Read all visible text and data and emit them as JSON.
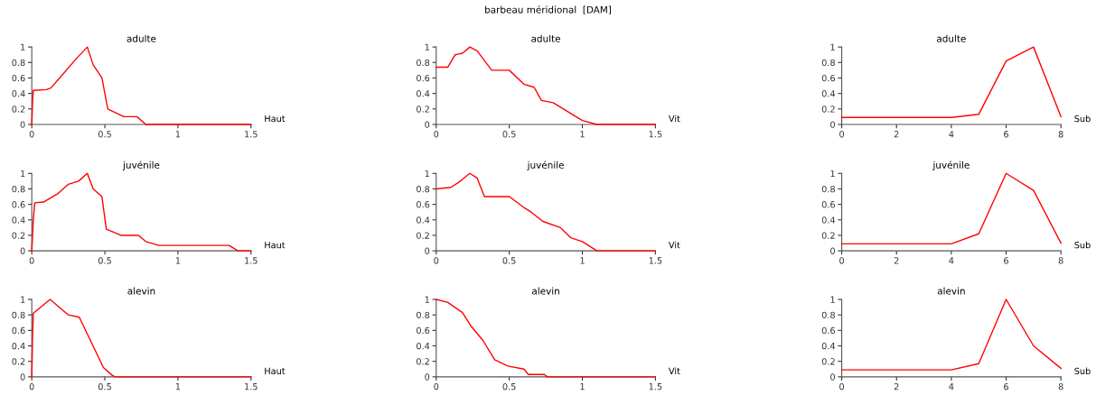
{
  "chart_data": [
    {
      "type": "line",
      "title": "adulte",
      "xlabel": "Haut",
      "annotations": [
        "barbeau méridional  [DAM]"
      ],
      "xlim": [
        0,
        1.5
      ],
      "xticks": [
        0,
        0.5,
        1,
        1.5
      ],
      "ylim": [
        0,
        1
      ],
      "yticks": [
        0,
        0.2,
        0.4,
        0.6,
        0.8,
        1
      ],
      "grid": false,
      "legend": false,
      "series": [
        {
          "color": "#ff0000",
          "x": [
            0,
            0.005,
            0.01,
            0.1,
            0.13,
            0.2,
            0.3,
            0.38,
            0.42,
            0.48,
            0.52,
            0.63,
            0.72,
            0.78,
            1.5
          ],
          "values": [
            0,
            0.27,
            0.44,
            0.45,
            0.47,
            0.62,
            0.84,
            1.0,
            0.77,
            0.6,
            0.2,
            0.1,
            0.1,
            0,
            0
          ]
        }
      ]
    },
    {
      "type": "line",
      "title": "adulte",
      "xlabel": "Vit",
      "xlim": [
        0,
        1.5
      ],
      "xticks": [
        0,
        0.5,
        1,
        1.5
      ],
      "ylim": [
        0,
        1
      ],
      "yticks": [
        0,
        0.2,
        0.4,
        0.6,
        0.8,
        1
      ],
      "grid": false,
      "legend": false,
      "series": [
        {
          "color": "#ff0000",
          "x": [
            0,
            0.08,
            0.13,
            0.18,
            0.23,
            0.28,
            0.38,
            0.5,
            0.6,
            0.67,
            0.72,
            0.8,
            1.0,
            1.1,
            1.5
          ],
          "values": [
            0.74,
            0.74,
            0.9,
            0.92,
            1.0,
            0.95,
            0.7,
            0.7,
            0.52,
            0.48,
            0.31,
            0.28,
            0.05,
            0,
            0
          ]
        }
      ]
    },
    {
      "type": "line",
      "title": "adulte",
      "xlabel": "Sub",
      "xlim": [
        0,
        8
      ],
      "xticks": [
        0,
        2,
        4,
        6,
        8
      ],
      "ylim": [
        0,
        1
      ],
      "yticks": [
        0,
        0.2,
        0.4,
        0.6,
        0.8,
        1
      ],
      "grid": false,
      "legend": false,
      "series": [
        {
          "color": "#ff0000",
          "x": [
            0,
            4,
            5,
            6,
            7,
            8
          ],
          "values": [
            0.09,
            0.09,
            0.13,
            0.82,
            1.0,
            0.1
          ]
        }
      ]
    },
    {
      "type": "line",
      "title": "juvénile",
      "xlabel": "Haut",
      "xlim": [
        0,
        1.5
      ],
      "xticks": [
        0,
        0.5,
        1,
        1.5
      ],
      "ylim": [
        0,
        1
      ],
      "yticks": [
        0,
        0.2,
        0.4,
        0.6,
        0.8,
        1
      ],
      "grid": false,
      "legend": false,
      "series": [
        {
          "color": "#ff0000",
          "x": [
            0,
            0.01,
            0.02,
            0.08,
            0.18,
            0.25,
            0.32,
            0.38,
            0.42,
            0.48,
            0.51,
            0.61,
            0.73,
            0.78,
            0.87,
            1.35,
            1.41,
            1.5
          ],
          "values": [
            0,
            0.38,
            0.62,
            0.63,
            0.74,
            0.86,
            0.9,
            1.0,
            0.8,
            0.7,
            0.28,
            0.2,
            0.2,
            0.12,
            0.07,
            0.07,
            0,
            0
          ]
        }
      ]
    },
    {
      "type": "line",
      "title": "juvénile",
      "xlabel": "Vit",
      "xlim": [
        0,
        1.5
      ],
      "xticks": [
        0,
        0.5,
        1,
        1.5
      ],
      "ylim": [
        0,
        1
      ],
      "yticks": [
        0,
        0.2,
        0.4,
        0.6,
        0.8,
        1
      ],
      "grid": false,
      "legend": false,
      "series": [
        {
          "color": "#ff0000",
          "x": [
            0,
            0.1,
            0.15,
            0.23,
            0.28,
            0.33,
            0.5,
            0.6,
            0.65,
            0.73,
            0.85,
            0.92,
            1.0,
            1.1,
            1.5
          ],
          "values": [
            0.8,
            0.82,
            0.88,
            1.0,
            0.94,
            0.7,
            0.7,
            0.56,
            0.5,
            0.38,
            0.3,
            0.17,
            0.12,
            0,
            0
          ]
        }
      ]
    },
    {
      "type": "line",
      "title": "juvénile",
      "xlabel": "Sub",
      "xlim": [
        0,
        8
      ],
      "xticks": [
        0,
        2,
        4,
        6,
        8
      ],
      "ylim": [
        0,
        1
      ],
      "yticks": [
        0,
        0.2,
        0.4,
        0.6,
        0.8,
        1
      ],
      "grid": false,
      "legend": false,
      "series": [
        {
          "color": "#ff0000",
          "x": [
            0,
            4,
            5,
            6,
            7,
            8
          ],
          "values": [
            0.09,
            0.09,
            0.22,
            1.0,
            0.78,
            0.1
          ]
        }
      ]
    },
    {
      "type": "line",
      "title": "alevin",
      "xlabel": "Haut",
      "xlim": [
        0,
        1.5
      ],
      "xticks": [
        0,
        0.5,
        1,
        1.5
      ],
      "ylim": [
        0,
        1
      ],
      "yticks": [
        0,
        0.2,
        0.4,
        0.6,
        0.8,
        1
      ],
      "grid": false,
      "legend": false,
      "series": [
        {
          "color": "#ff0000",
          "x": [
            0,
            0.005,
            0.01,
            0.125,
            0.25,
            0.325,
            0.49,
            0.55,
            0.57,
            1.5
          ],
          "values": [
            0,
            0.5,
            0.82,
            1.0,
            0.8,
            0.77,
            0.12,
            0.02,
            0,
            0
          ]
        }
      ]
    },
    {
      "type": "line",
      "title": "alevin",
      "xlabel": "Vit",
      "xlim": [
        0,
        1.5
      ],
      "xticks": [
        0,
        0.5,
        1,
        1.5
      ],
      "ylim": [
        0,
        1
      ],
      "yticks": [
        0,
        0.2,
        0.4,
        0.6,
        0.8,
        1
      ],
      "grid": false,
      "legend": false,
      "series": [
        {
          "color": "#ff0000",
          "x": [
            0,
            0.08,
            0.18,
            0.24,
            0.32,
            0.4,
            0.49,
            0.6,
            0.63,
            0.74,
            0.76,
            1.5
          ],
          "values": [
            1.0,
            0.96,
            0.83,
            0.65,
            0.47,
            0.22,
            0.14,
            0.1,
            0.03,
            0.03,
            0,
            0
          ]
        }
      ]
    },
    {
      "type": "line",
      "title": "alevin",
      "xlabel": "Sub",
      "xlim": [
        0,
        8
      ],
      "xticks": [
        0,
        2,
        4,
        6,
        8
      ],
      "ylim": [
        0,
        1
      ],
      "yticks": [
        0,
        0.2,
        0.4,
        0.6,
        0.8,
        1
      ],
      "grid": false,
      "legend": false,
      "series": [
        {
          "color": "#ff0000",
          "x": [
            0,
            4,
            5,
            6,
            7,
            8
          ],
          "values": [
            0.09,
            0.09,
            0.17,
            1.0,
            0.4,
            0.11
          ]
        }
      ]
    }
  ]
}
